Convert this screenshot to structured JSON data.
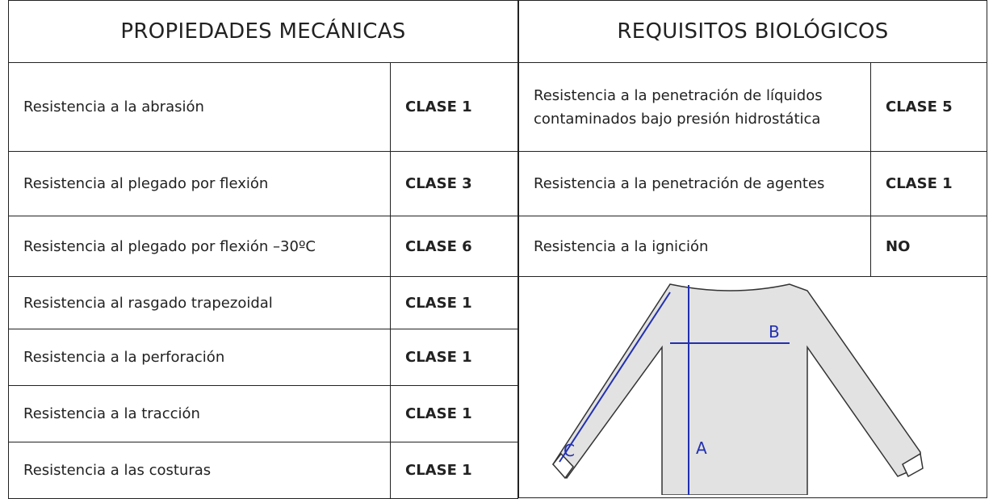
{
  "left": {
    "title": "PROPIEDADES MECÁNICAS",
    "rows": [
      [
        "Resistencia a la abrasión",
        "CLASE 1"
      ],
      [
        "Resistencia al plegado por flexión",
        "CLASE 3"
      ],
      [
        "Resistencia al plegado por flexión –30ºC",
        "CLASE 6"
      ],
      [
        "Resistencia al rasgado trapezoidal",
        "CLASE 1"
      ],
      [
        "Resistencia a la perforación",
        "CLASE 1"
      ],
      [
        "Resistencia a la tracción",
        "CLASE 1"
      ],
      [
        "Resistencia a las costuras",
        "CLASE 1"
      ]
    ]
  },
  "right": {
    "title": "REQUISITOS BIOLÓGICOS",
    "rows": [
      [
        "Resistencia a la penetración de líquidos contaminados bajo presión hidrostática",
        "CLASE 5"
      ],
      [
        "Resistencia a la penetración de agentes",
        "CLASE 1"
      ],
      [
        "Resistencia a la ignición",
        "NO"
      ]
    ]
  },
  "diagram": {
    "labels": [
      "A",
      "B",
      "C"
    ]
  }
}
